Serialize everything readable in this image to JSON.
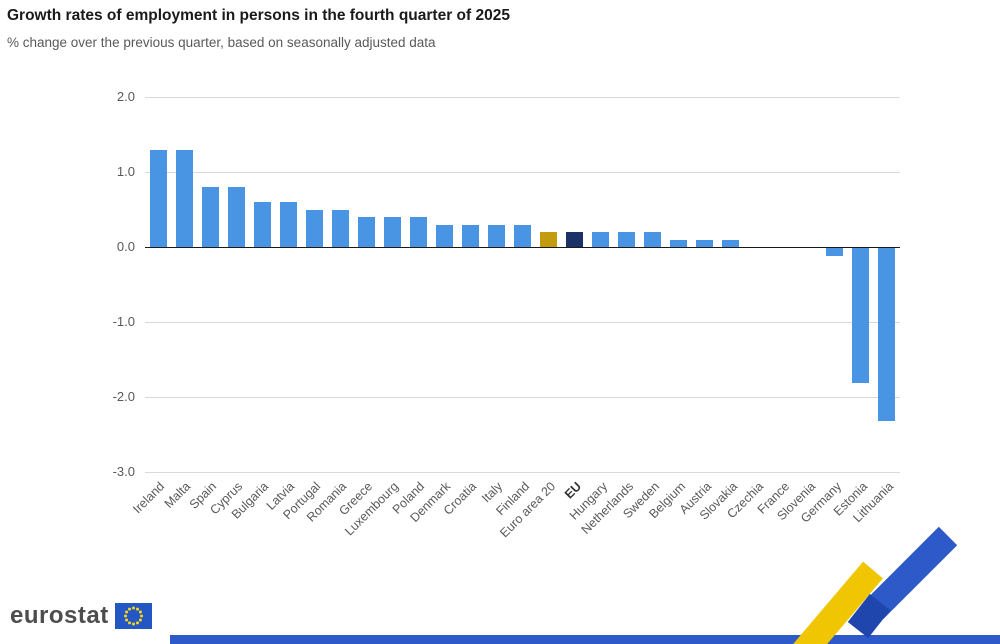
{
  "header": {
    "title": "Growth rates of employment in persons in the fourth quarter of 2025",
    "subtitle": "% change over the previous quarter, based on seasonally adjusted data"
  },
  "chart_data": {
    "type": "bar",
    "title": "Growth rates of employment in persons in the fourth quarter of 2025",
    "subtitle": "% change over the previous quarter, based on seasonally adjusted data",
    "categories": [
      "Ireland",
      "Malta",
      "Spain",
      "Cyprus",
      "Bulgaria",
      "Latvia",
      "Portugal",
      "Romania",
      "Greece",
      "Luxembourg",
      "Poland",
      "Denmark",
      "Croatia",
      "Italy",
      "Finland",
      "Euro area 20",
      "EU",
      "Hungary",
      "Netherlands",
      "Sweden",
      "Belgium",
      "Austria",
      "Slovakia",
      "Czechia",
      "France",
      "Slovenia",
      "Germany",
      "Estonia",
      "Lithuania"
    ],
    "values": [
      1.3,
      1.3,
      0.8,
      0.8,
      0.6,
      0.6,
      0.5,
      0.5,
      0.4,
      0.4,
      0.4,
      0.3,
      0.3,
      0.3,
      0.3,
      0.2,
      0.2,
      0.2,
      0.2,
      0.2,
      0.1,
      0.1,
      0.1,
      0.0,
      0.0,
      0.0,
      -0.1,
      -1.8,
      -2.3
    ],
    "xlabel": "",
    "ylabel": "",
    "ylim": [
      -3.0,
      2.0
    ],
    "ytick_labels": [
      "2.0",
      "1.0",
      "0.0",
      "-1.0",
      "-2.0",
      "-3.0"
    ],
    "grid": "horizontal-gridlines",
    "legend": "none",
    "default_bar_color": "#4a94e4",
    "bar_colors": {
      "Euro area 20": "#c29b0e",
      "EU": "#1b3168"
    },
    "emphasized_labels": [
      "EU"
    ]
  },
  "footer": {
    "logo_text": "eurostat",
    "colors": {
      "flag_blue": "#2257c4",
      "star_yellow": "#ffd617",
      "ribbon_blue": "#2d5ac8",
      "ribbon_fold_blue": "#1f46ad",
      "ribbon_yellow": "#f0c502",
      "bottom_strip_blue": "#2d5ac8"
    }
  }
}
